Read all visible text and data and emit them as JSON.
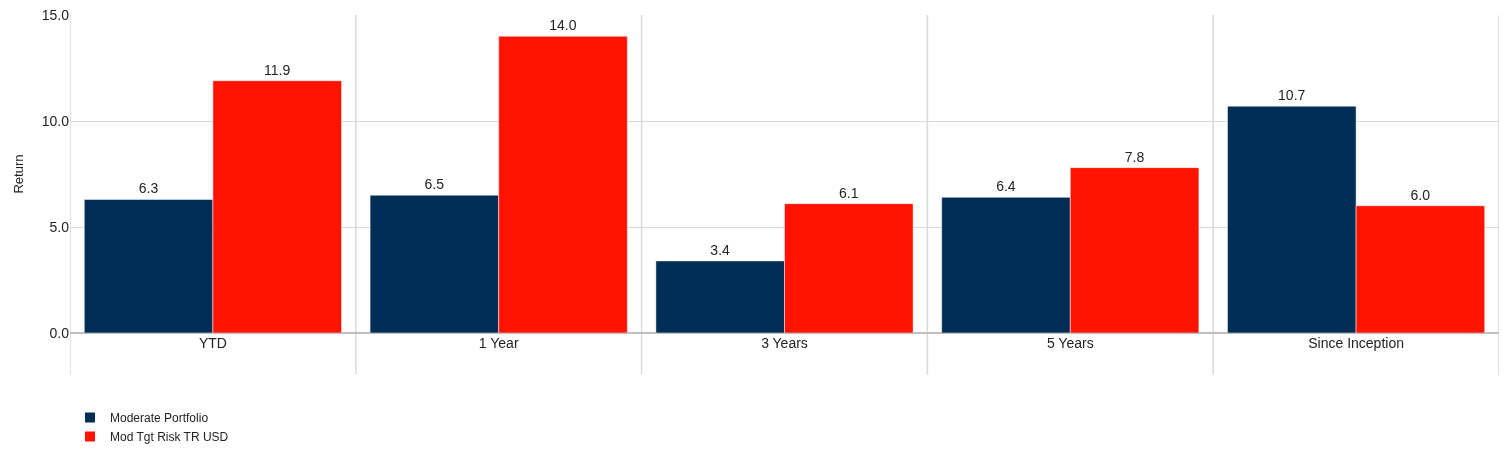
{
  "chart_data": {
    "type": "bar",
    "ylabel": "Return",
    "categories": [
      "YTD",
      "1 Year",
      "3 Years",
      "5 Years",
      "Since Inception"
    ],
    "series": [
      {
        "name": "Moderate Portfolio",
        "color": "#002d56",
        "values": [
          6.3,
          6.5,
          3.4,
          6.4,
          10.7
        ],
        "value_labels": [
          "6.3",
          "6.5",
          "3.4",
          "6.4",
          "10.7"
        ]
      },
      {
        "name": "Mod Tgt Risk TR USD",
        "color": "#ff1200",
        "values": [
          11.9,
          14.0,
          6.1,
          7.8,
          6.0
        ],
        "value_labels": [
          "11.9",
          "14.0",
          "6.1",
          "7.8",
          "6.0"
        ]
      }
    ],
    "ylim": [
      0,
      15
    ],
    "yticks": [
      {
        "value": 0,
        "label": "0.0"
      },
      {
        "value": 5,
        "label": "5.0"
      },
      {
        "value": 10,
        "label": "10.0"
      },
      {
        "value": 15,
        "label": "15.0"
      }
    ],
    "grid": true,
    "legend": "bottom left"
  }
}
